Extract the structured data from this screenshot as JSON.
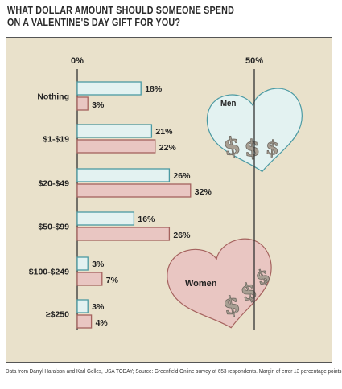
{
  "title_lines": [
    "WHAT DOLLAR AMOUNT SHOULD SOMEONE SPEND",
    "ON A VALENTINE'S DAY GIFT FOR YOU?"
  ],
  "footnote": "Data from Darryl Haralson and Karl Gelles, USA TODAY; Source: Greenfield Online survey of 653 respondents. Margin of error ±3 percentage points.",
  "colors": {
    "background": "#e9e1cb",
    "men_fill": "#e3f2f1",
    "men_stroke": "#4b9aa3",
    "women_fill": "#e9c6c2",
    "women_stroke": "#a5625e",
    "dollar_fill": "#a89f93"
  },
  "chart_data": {
    "type": "bar",
    "orientation": "horizontal",
    "title": "WHAT DOLLAR AMOUNT SHOULD SOMEONE SPEND ON A VALENTINE'S DAY GIFT FOR YOU?",
    "categories": [
      "Nothing",
      "$1-$19",
      "$20-$49",
      "$50-$99",
      "$100-$249",
      "≥$250"
    ],
    "series": [
      {
        "name": "Men",
        "values": [
          18,
          21,
          26,
          16,
          3,
          3
        ]
      },
      {
        "name": "Women",
        "values": [
          3,
          22,
          32,
          26,
          7,
          4
        ]
      }
    ],
    "value_unit": "%",
    "axis_ticks": [
      {
        "value": 0,
        "label": "0%"
      },
      {
        "value": 50,
        "label": "50%"
      }
    ],
    "xlim": [
      0,
      50
    ],
    "grid": false,
    "legend": "hearts"
  }
}
